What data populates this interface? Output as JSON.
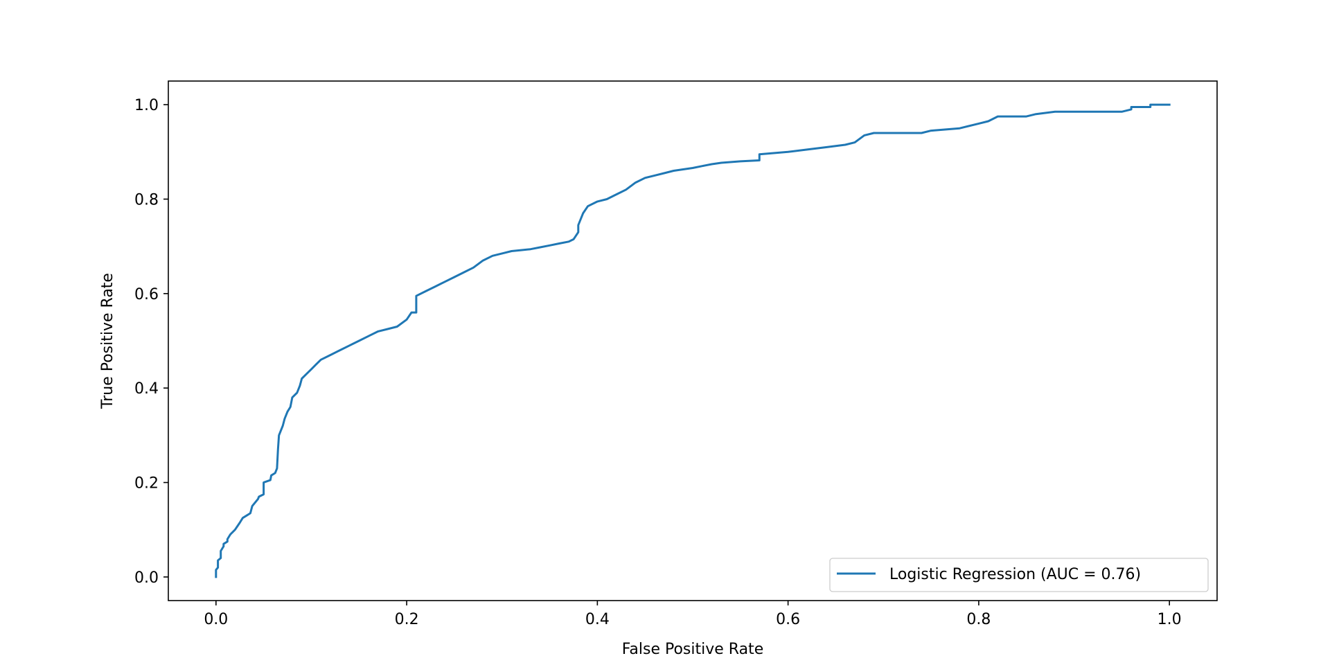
{
  "chart_data": {
    "type": "line",
    "xlabel": "False Positive Rate",
    "ylabel": "True Positive Rate",
    "xlim": [
      -0.05,
      1.05
    ],
    "ylim": [
      -0.05,
      1.05
    ],
    "xticks": [
      0.0,
      0.2,
      0.4,
      0.6,
      0.8,
      1.0
    ],
    "yticks": [
      0.0,
      0.2,
      0.4,
      0.6,
      0.8,
      1.0
    ],
    "xtick_labels": [
      "0.0",
      "0.2",
      "0.4",
      "0.6",
      "0.8",
      "1.0"
    ],
    "ytick_labels": [
      "0.0",
      "0.2",
      "0.4",
      "0.6",
      "0.8",
      "1.0"
    ],
    "grid": false,
    "legend_position": "lower-right",
    "colors": {
      "series": "#1f77b4",
      "axes": "#000000",
      "background": "#ffffff"
    },
    "series": [
      {
        "name": "Logistic Regression (AUC = 0.76)",
        "x": [
          0.0,
          0.0,
          0.002,
          0.002,
          0.005,
          0.005,
          0.008,
          0.008,
          0.012,
          0.012,
          0.015,
          0.02,
          0.025,
          0.028,
          0.032,
          0.036,
          0.038,
          0.044,
          0.045,
          0.05,
          0.05,
          0.057,
          0.058,
          0.062,
          0.064,
          0.065,
          0.066,
          0.07,
          0.072,
          0.075,
          0.078,
          0.08,
          0.085,
          0.088,
          0.09,
          0.095,
          0.1,
          0.105,
          0.11,
          0.12,
          0.13,
          0.14,
          0.15,
          0.16,
          0.17,
          0.18,
          0.19,
          0.2,
          0.205,
          0.21,
          0.21,
          0.22,
          0.23,
          0.24,
          0.25,
          0.26,
          0.27,
          0.28,
          0.29,
          0.3,
          0.31,
          0.32,
          0.33,
          0.34,
          0.35,
          0.36,
          0.37,
          0.375,
          0.38,
          0.38,
          0.385,
          0.39,
          0.4,
          0.41,
          0.42,
          0.43,
          0.44,
          0.45,
          0.46,
          0.47,
          0.48,
          0.49,
          0.5,
          0.51,
          0.52,
          0.53,
          0.55,
          0.57,
          0.57,
          0.6,
          0.62,
          0.64,
          0.66,
          0.67,
          0.68,
          0.69,
          0.74,
          0.75,
          0.78,
          0.8,
          0.81,
          0.82,
          0.85,
          0.86,
          0.88,
          0.9,
          0.95,
          0.96,
          0.96,
          0.98,
          0.98,
          1.0
        ],
        "y": [
          0.0,
          0.015,
          0.02,
          0.035,
          0.04,
          0.055,
          0.065,
          0.07,
          0.075,
          0.08,
          0.09,
          0.1,
          0.115,
          0.125,
          0.13,
          0.135,
          0.15,
          0.165,
          0.17,
          0.175,
          0.2,
          0.205,
          0.215,
          0.22,
          0.23,
          0.27,
          0.3,
          0.32,
          0.335,
          0.35,
          0.36,
          0.38,
          0.39,
          0.405,
          0.42,
          0.43,
          0.44,
          0.45,
          0.46,
          0.47,
          0.48,
          0.49,
          0.5,
          0.51,
          0.52,
          0.525,
          0.53,
          0.545,
          0.56,
          0.56,
          0.595,
          0.605,
          0.615,
          0.625,
          0.635,
          0.645,
          0.655,
          0.67,
          0.68,
          0.685,
          0.69,
          0.692,
          0.694,
          0.698,
          0.702,
          0.706,
          0.71,
          0.715,
          0.73,
          0.745,
          0.77,
          0.785,
          0.795,
          0.8,
          0.81,
          0.82,
          0.835,
          0.845,
          0.85,
          0.855,
          0.86,
          0.863,
          0.866,
          0.87,
          0.874,
          0.877,
          0.88,
          0.882,
          0.895,
          0.9,
          0.905,
          0.91,
          0.915,
          0.92,
          0.935,
          0.94,
          0.94,
          0.945,
          0.95,
          0.96,
          0.965,
          0.975,
          0.975,
          0.98,
          0.985,
          0.985,
          0.985,
          0.99,
          0.995,
          0.995,
          1.0,
          1.0
        ]
      }
    ]
  }
}
